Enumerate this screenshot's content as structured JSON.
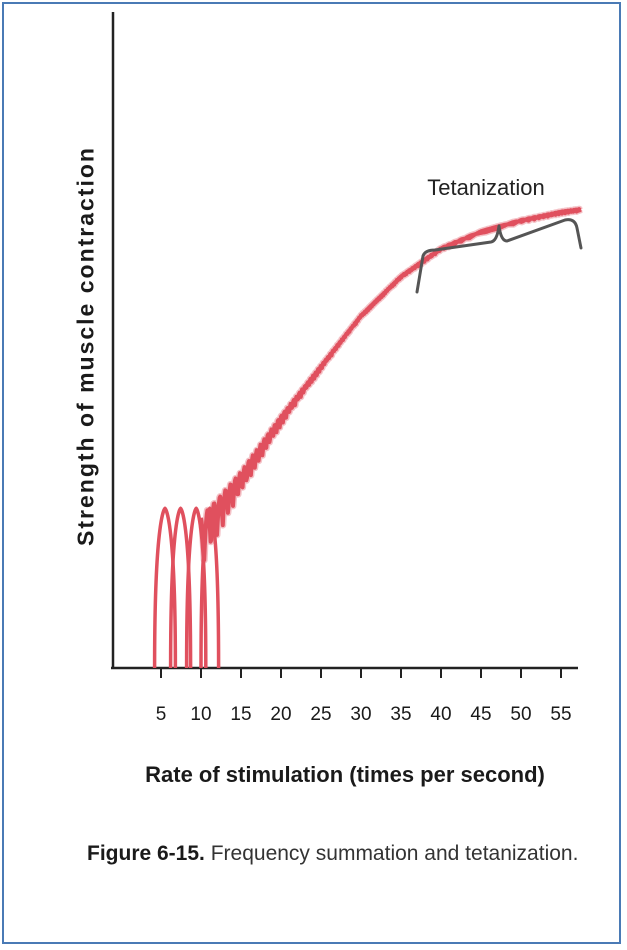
{
  "chart_data": {
    "type": "line",
    "title": "",
    "xlabel": "Rate of stimulation (times per second)",
    "ylabel": "Strength of muscle contraction",
    "x_ticks": [
      5,
      10,
      15,
      20,
      25,
      30,
      35,
      40,
      45,
      50,
      55
    ],
    "xlim": [
      0,
      58
    ],
    "ylim": [
      0,
      1
    ],
    "grid": false,
    "color": "#e0505e",
    "twitches": [
      {
        "x_start": 4.2,
        "x_end": 6.8,
        "peak": 0.26
      },
      {
        "x_start": 6.2,
        "x_end": 8.7,
        "peak": 0.26
      },
      {
        "x_start": 8.2,
        "x_end": 10.6,
        "peak": 0.26
      },
      {
        "x_start": 10.0,
        "x_end": 12.2,
        "peak": 0.26
      }
    ],
    "envelope": [
      {
        "x": 10.0,
        "y": 0.27
      },
      {
        "x": 12.0,
        "y": 0.3
      },
      {
        "x": 15.0,
        "y": 0.35
      },
      {
        "x": 20.0,
        "y": 0.45
      },
      {
        "x": 25.0,
        "y": 0.54
      },
      {
        "x": 30.0,
        "y": 0.63
      },
      {
        "x": 35.0,
        "y": 0.7
      },
      {
        "x": 40.0,
        "y": 0.75
      },
      {
        "x": 45.0,
        "y": 0.78
      },
      {
        "x": 50.0,
        "y": 0.8
      },
      {
        "x": 55.0,
        "y": 0.815
      },
      {
        "x": 57.5,
        "y": 0.82
      }
    ],
    "annotation": {
      "text": "Tetanization",
      "x_start": 37,
      "x_end": 57.5
    }
  },
  "caption": {
    "label": "Figure 6-15.",
    "text": "Frequency summation and tetanization."
  }
}
